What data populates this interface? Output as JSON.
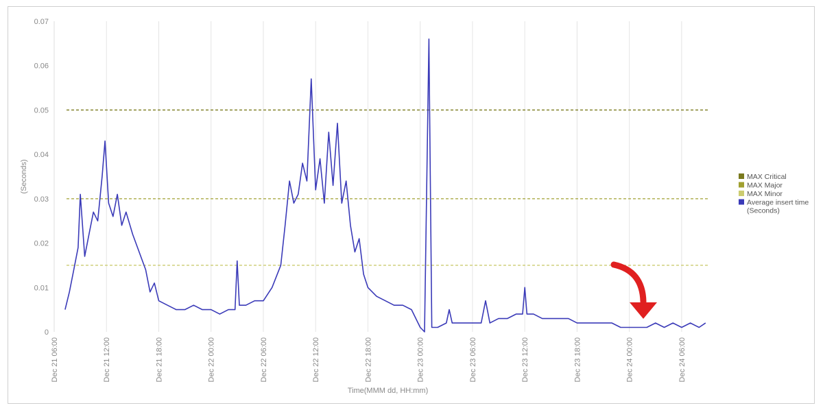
{
  "chart_data": {
    "type": "line",
    "xlabel": "Time(MMM dd, HH:mm)",
    "ylabel": "(Seconds)",
    "ylim": [
      0,
      0.07
    ],
    "y_ticks": [
      "0",
      "0.01",
      "0.02",
      "0.03",
      "0.04",
      "0.05",
      "0.06",
      "0.07"
    ],
    "x_range_hours": [
      "Dec 21 06:00",
      "Dec 24 09:00"
    ],
    "x_ticks": [
      "Dec 21 06:00",
      "Dec 21 12:00",
      "Dec 21 18:00",
      "Dec 22 00:00",
      "Dec 22 06:00",
      "Dec 22 12:00",
      "Dec 22 18:00",
      "Dec 23 00:00",
      "Dec 23 06:00",
      "Dec 23 12:00",
      "Dec 23 18:00",
      "Dec 24 00:00",
      "Dec 24 06:00"
    ],
    "grid": "vertical",
    "legend_position": "right",
    "thresholds": [
      {
        "name": "MAX Critical",
        "value": 0.05,
        "color": "#7a7a1e"
      },
      {
        "name": "MAX Major",
        "value": 0.03,
        "color": "#a0a030"
      },
      {
        "name": "MAX Minor",
        "value": 0.015,
        "color": "#cccc70"
      }
    ],
    "series": [
      {
        "name": "Average insert time",
        "name_line2": "(Seconds)",
        "color": "#3a3ab8",
        "points": [
          [
            "Dec 21 07:15",
            0.005
          ],
          [
            "Dec 21 07:45",
            0.009
          ],
          [
            "Dec 21 08:15",
            0.014
          ],
          [
            "Dec 21 08:45",
            0.019
          ],
          [
            "Dec 21 09:00",
            0.031
          ],
          [
            "Dec 21 09:30",
            0.017
          ],
          [
            "Dec 21 10:00",
            0.022
          ],
          [
            "Dec 21 10:30",
            0.027
          ],
          [
            "Dec 21 11:00",
            0.025
          ],
          [
            "Dec 21 11:30",
            0.035
          ],
          [
            "Dec 21 11:50",
            0.043
          ],
          [
            "Dec 21 12:15",
            0.029
          ],
          [
            "Dec 21 12:45",
            0.026
          ],
          [
            "Dec 21 13:15",
            0.031
          ],
          [
            "Dec 21 13:45",
            0.024
          ],
          [
            "Dec 21 14:15",
            0.027
          ],
          [
            "Dec 21 15:00",
            0.022
          ],
          [
            "Dec 21 15:45",
            0.018
          ],
          [
            "Dec 21 16:30",
            0.014
          ],
          [
            "Dec 21 17:00",
            0.009
          ],
          [
            "Dec 21 17:30",
            0.011
          ],
          [
            "Dec 21 18:00",
            0.007
          ],
          [
            "Dec 21 19:00",
            0.006
          ],
          [
            "Dec 21 20:00",
            0.005
          ],
          [
            "Dec 21 21:00",
            0.005
          ],
          [
            "Dec 21 22:00",
            0.006
          ],
          [
            "Dec 21 23:00",
            0.005
          ],
          [
            "Dec 22 00:00",
            0.005
          ],
          [
            "Dec 22 01:00",
            0.004
          ],
          [
            "Dec 22 02:00",
            0.005
          ],
          [
            "Dec 22 02:45",
            0.005
          ],
          [
            "Dec 22 03:00",
            0.016
          ],
          [
            "Dec 22 03:15",
            0.006
          ],
          [
            "Dec 22 04:00",
            0.006
          ],
          [
            "Dec 22 05:00",
            0.007
          ],
          [
            "Dec 22 06:00",
            0.007
          ],
          [
            "Dec 22 07:00",
            0.01
          ],
          [
            "Dec 22 08:00",
            0.015
          ],
          [
            "Dec 22 08:30",
            0.024
          ],
          [
            "Dec 22 09:00",
            0.034
          ],
          [
            "Dec 22 09:30",
            0.029
          ],
          [
            "Dec 22 10:00",
            0.031
          ],
          [
            "Dec 22 10:30",
            0.038
          ],
          [
            "Dec 22 11:00",
            0.034
          ],
          [
            "Dec 22 11:30",
            0.057
          ],
          [
            "Dec 22 12:00",
            0.032
          ],
          [
            "Dec 22 12:30",
            0.039
          ],
          [
            "Dec 22 13:00",
            0.029
          ],
          [
            "Dec 22 13:30",
            0.045
          ],
          [
            "Dec 22 14:00",
            0.033
          ],
          [
            "Dec 22 14:30",
            0.047
          ],
          [
            "Dec 22 15:00",
            0.029
          ],
          [
            "Dec 22 15:30",
            0.034
          ],
          [
            "Dec 22 16:00",
            0.024
          ],
          [
            "Dec 22 16:30",
            0.018
          ],
          [
            "Dec 22 17:00",
            0.021
          ],
          [
            "Dec 22 17:30",
            0.013
          ],
          [
            "Dec 22 18:00",
            0.01
          ],
          [
            "Dec 22 19:00",
            0.008
          ],
          [
            "Dec 22 20:00",
            0.007
          ],
          [
            "Dec 22 21:00",
            0.006
          ],
          [
            "Dec 22 22:00",
            0.006
          ],
          [
            "Dec 22 23:00",
            0.005
          ],
          [
            "Dec 23 00:00",
            0.001
          ],
          [
            "Dec 23 00:30",
            0.0
          ],
          [
            "Dec 23 01:00",
            0.066
          ],
          [
            "Dec 23 01:20",
            0.001
          ],
          [
            "Dec 23 02:00",
            0.001
          ],
          [
            "Dec 23 03:00",
            0.002
          ],
          [
            "Dec 23 03:20",
            0.005
          ],
          [
            "Dec 23 03:40",
            0.002
          ],
          [
            "Dec 23 05:00",
            0.002
          ],
          [
            "Dec 23 06:00",
            0.002
          ],
          [
            "Dec 23 07:00",
            0.002
          ],
          [
            "Dec 23 07:30",
            0.007
          ],
          [
            "Dec 23 08:00",
            0.002
          ],
          [
            "Dec 23 09:00",
            0.003
          ],
          [
            "Dec 23 10:00",
            0.003
          ],
          [
            "Dec 23 11:00",
            0.004
          ],
          [
            "Dec 23 11:45",
            0.004
          ],
          [
            "Dec 23 12:00",
            0.01
          ],
          [
            "Dec 23 12:15",
            0.004
          ],
          [
            "Dec 23 13:00",
            0.004
          ],
          [
            "Dec 23 14:00",
            0.003
          ],
          [
            "Dec 23 15:00",
            0.003
          ],
          [
            "Dec 23 16:00",
            0.003
          ],
          [
            "Dec 23 17:00",
            0.003
          ],
          [
            "Dec 23 18:00",
            0.002
          ],
          [
            "Dec 23 19:00",
            0.002
          ],
          [
            "Dec 23 20:00",
            0.002
          ],
          [
            "Dec 23 21:00",
            0.002
          ],
          [
            "Dec 23 22:00",
            0.002
          ],
          [
            "Dec 23 23:00",
            0.001
          ],
          [
            "Dec 24 00:00",
            0.001
          ],
          [
            "Dec 24 01:00",
            0.001
          ],
          [
            "Dec 24 02:00",
            0.001
          ],
          [
            "Dec 24 03:00",
            0.002
          ],
          [
            "Dec 24 04:00",
            0.001
          ],
          [
            "Dec 24 05:00",
            0.002
          ],
          [
            "Dec 24 06:00",
            0.001
          ],
          [
            "Dec 24 07:00",
            0.002
          ],
          [
            "Dec 24 08:00",
            0.001
          ],
          [
            "Dec 24 08:45",
            0.002
          ]
        ]
      }
    ],
    "annotation_arrow_color": "#e02020"
  }
}
